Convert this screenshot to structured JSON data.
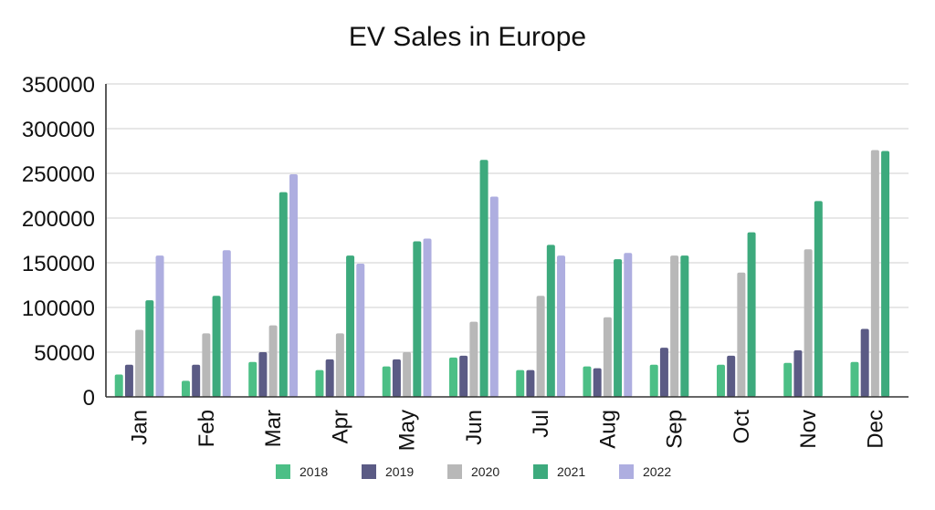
{
  "chart_data": {
    "type": "bar",
    "title": "EV Sales in Europe",
    "xlabel": "",
    "ylabel": "",
    "ylim": [
      0,
      350000
    ],
    "yticks": [
      0,
      50000,
      100000,
      150000,
      200000,
      250000,
      300000,
      350000
    ],
    "grid": true,
    "legend_position": "bottom",
    "categories": [
      "Jan",
      "Feb",
      "Mar",
      "Apr",
      "May",
      "Jun",
      "Jul",
      "Aug",
      "Sep",
      "Oct",
      "Nov",
      "Dec"
    ],
    "series": [
      {
        "name": "2018",
        "color": "#4cbf86",
        "values": [
          25000,
          18000,
          39000,
          30000,
          34000,
          44000,
          30000,
          34000,
          36000,
          36000,
          38000,
          39000
        ]
      },
      {
        "name": "2019",
        "color": "#5b5b85",
        "values": [
          36000,
          36000,
          50000,
          42000,
          42000,
          46000,
          30000,
          32000,
          55000,
          46000,
          52000,
          76000
        ]
      },
      {
        "name": "2020",
        "color": "#b8b8b8",
        "values": [
          75000,
          71000,
          80000,
          71000,
          50000,
          84000,
          113000,
          89000,
          158000,
          139000,
          165000,
          276000
        ]
      },
      {
        "name": "2021",
        "color": "#3daa7d",
        "values": [
          108000,
          113000,
          229000,
          158000,
          174000,
          265000,
          170000,
          154000,
          158000,
          184000,
          219000,
          275000
        ]
      },
      {
        "name": "2022",
        "color": "#aeaee0",
        "values": [
          158000,
          164000,
          249000,
          149000,
          177000,
          224000,
          158000,
          161000,
          null,
          null,
          null,
          null
        ]
      }
    ]
  }
}
